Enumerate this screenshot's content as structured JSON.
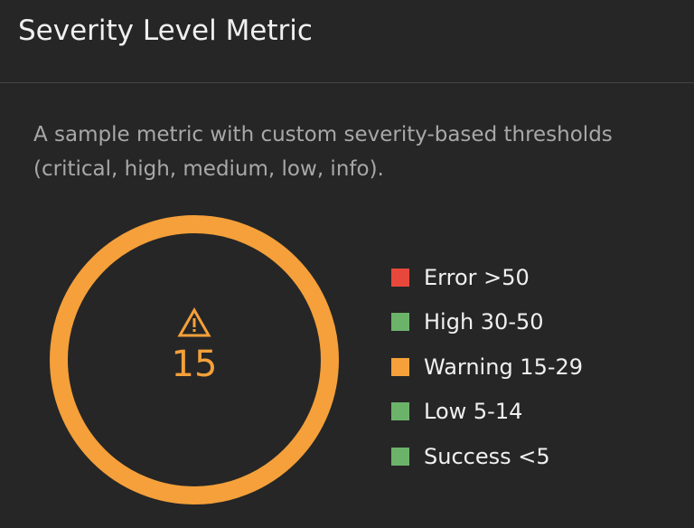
{
  "header": {
    "title": "Severity Level Metric"
  },
  "description": "A sample metric with custom severity-based thresholds (critical, high, medium, low, info).",
  "metric": {
    "value": "15",
    "status": "warning",
    "icon": "warning-triangle-icon",
    "color": "#f5a03a"
  },
  "legend": [
    {
      "label": "Error >50",
      "color": "#e8483c"
    },
    {
      "label": "High 30-50",
      "color": "#6cb36a"
    },
    {
      "label": "Warning 15-29",
      "color": "#f5a03a"
    },
    {
      "label": "Low 5-14",
      "color": "#6cb36a"
    },
    {
      "label": "Success <5",
      "color": "#6cb36a"
    }
  ]
}
